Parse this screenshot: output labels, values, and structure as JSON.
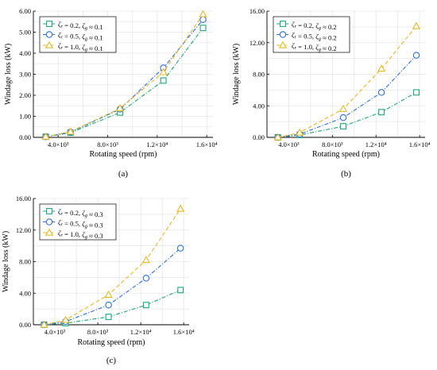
{
  "chart_data": [
    {
      "type": "line",
      "panel_label": "(a)",
      "xlabel": "Rotating speed (rpm)",
      "ylabel": "Windage loss (kW)",
      "xlim": [
        2000,
        16500
      ],
      "ylim": [
        0,
        6
      ],
      "xticks": [
        4000,
        8000,
        12000,
        16000
      ],
      "xtick_labels": [
        "4.0×10³",
        "8.0×10³",
        "1.2×10⁴",
        "1.6×10⁴"
      ],
      "yticks": [
        0,
        1,
        2,
        3,
        4,
        5,
        6
      ],
      "ytick_labels": [
        "0.00",
        "1.00",
        "2.00",
        "3.00",
        "4.00",
        "5.00",
        "6.00"
      ],
      "grid": true,
      "legend_position": "top-left",
      "x": [
        3000,
        5000,
        9000,
        12500,
        15700
      ],
      "series": [
        {
          "name": "ζr = 0.2, ζg ≈ 0.1",
          "marker": "square",
          "dash": "dash-dot",
          "color": "#1aa87a",
          "values": [
            0.03,
            0.22,
            1.18,
            2.7,
            5.2
          ]
        },
        {
          "name": "ζr = 0.5, ζg ≈ 0.1",
          "marker": "circle",
          "dash": "dash-dot",
          "color": "#2a6fd6",
          "values": [
            0.03,
            0.25,
            1.34,
            3.3,
            5.6
          ]
        },
        {
          "name": "ζr = 1.0, ζg ≈ 0.1",
          "marker": "triangle",
          "dash": "dash",
          "color": "#e8b81e",
          "values": [
            0.03,
            0.27,
            1.38,
            3.1,
            5.85
          ]
        }
      ]
    },
    {
      "type": "line",
      "panel_label": "(b)",
      "xlabel": "Rotating speed (rpm)",
      "ylabel": "Windage loss (kW)",
      "xlim": [
        2000,
        16500
      ],
      "ylim": [
        0,
        16
      ],
      "xticks": [
        4000,
        8000,
        12000,
        16000
      ],
      "xtick_labels": [
        "4.0×10³",
        "8.0×10³",
        "1.2×10⁴",
        "1.6×10⁴"
      ],
      "yticks": [
        0,
        4,
        8,
        12,
        16
      ],
      "ytick_labels": [
        "0.00",
        "4.00",
        "8.00",
        "12.00",
        "16.00"
      ],
      "grid": true,
      "legend_position": "top-left",
      "x": [
        3000,
        5000,
        9000,
        12500,
        15700
      ],
      "series": [
        {
          "name": "ζr = 0.2, ζg ≈ 0.2",
          "marker": "square",
          "dash": "dash-dot",
          "color": "#1aa87a",
          "values": [
            0.0,
            0.3,
            1.4,
            3.2,
            5.7
          ]
        },
        {
          "name": "ζr = 0.5, ζg ≈ 0.2",
          "marker": "circle",
          "dash": "dash-dot",
          "color": "#2a6fd6",
          "values": [
            0.0,
            0.4,
            2.5,
            5.7,
            10.4
          ]
        },
        {
          "name": "ζr = 1.0, ζg ≈ 0.2",
          "marker": "triangle",
          "dash": "dash",
          "color": "#e8b81e",
          "values": [
            0.0,
            0.6,
            3.6,
            8.7,
            14.1
          ]
        }
      ]
    },
    {
      "type": "line",
      "panel_label": "(c)",
      "xlabel": "Rotating speed (rpm)",
      "ylabel": "Windage loss (kW)",
      "xlim": [
        2000,
        16500
      ],
      "ylim": [
        0,
        16
      ],
      "xticks": [
        4000,
        8000,
        12000,
        16000
      ],
      "xtick_labels": [
        "4.0×10³",
        "8.0×10³",
        "1.2×10⁴",
        "1.6×10⁴"
      ],
      "yticks": [
        0,
        4,
        8,
        12,
        16
      ],
      "ytick_labels": [
        "0.00",
        "4.00",
        "8.00",
        "12.00",
        "16.00"
      ],
      "grid": true,
      "legend_position": "top-left",
      "x": [
        3000,
        5000,
        9000,
        12500,
        15700
      ],
      "series": [
        {
          "name": "ζr = 0.2, ζg ≈ 0.3",
          "marker": "square",
          "dash": "dash-dot",
          "color": "#1aa87a",
          "values": [
            0.0,
            0.2,
            1.0,
            2.5,
            4.4
          ]
        },
        {
          "name": "ζr = 0.5, ζg ≈ 0.3",
          "marker": "circle",
          "dash": "dash-dot",
          "color": "#2a6fd6",
          "values": [
            0.0,
            0.4,
            2.5,
            5.9,
            9.7
          ]
        },
        {
          "name": "ζr = 1.0, ζg ≈ 0.3",
          "marker": "triangle",
          "dash": "dash",
          "color": "#e8b81e",
          "values": [
            0.0,
            0.6,
            3.8,
            8.2,
            14.7
          ]
        }
      ]
    }
  ]
}
